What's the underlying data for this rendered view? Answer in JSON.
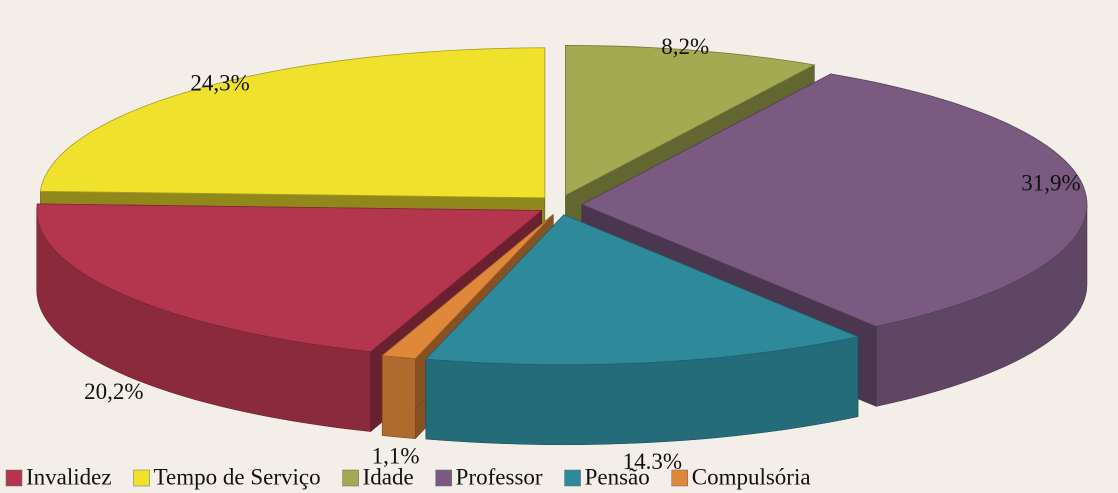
{
  "chart_data": {
    "type": "pie3d",
    "categories": [
      "Invalidez",
      "Tempo de Serviço",
      "Idade",
      "Professor",
      "Pensão",
      "Compulsória"
    ],
    "values": [
      20.2,
      24.3,
      8.2,
      31.9,
      14.3,
      1.1
    ],
    "value_labels": [
      "20,2%",
      "24,3%",
      "8,2%",
      "31,9%",
      "14.3%",
      "1,1%"
    ],
    "colors": [
      "#b3364e",
      "#f0e22c",
      "#a3aa52",
      "#7b5a82",
      "#2e8a9b",
      "#e0883a"
    ],
    "legend": "bottom"
  }
}
